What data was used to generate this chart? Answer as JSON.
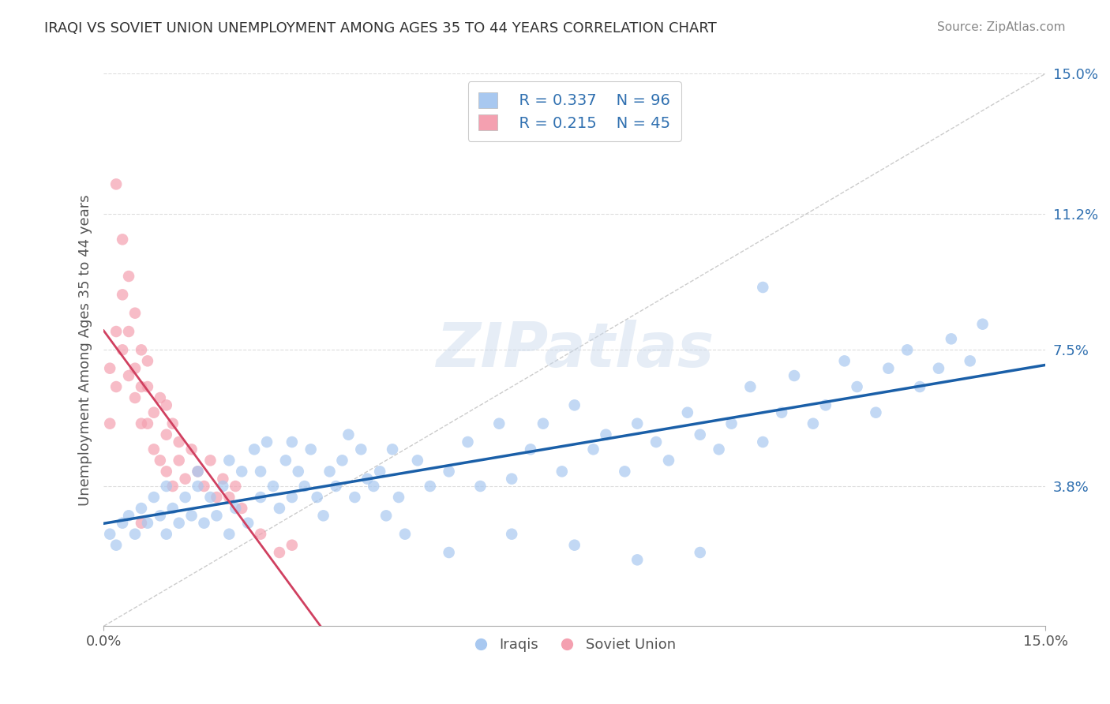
{
  "title": "IRAQI VS SOVIET UNION UNEMPLOYMENT AMONG AGES 35 TO 44 YEARS CORRELATION CHART",
  "source": "Source: ZipAtlas.com",
  "ylabel": "Unemployment Among Ages 35 to 44 years",
  "xlim": [
    0.0,
    0.15
  ],
  "ylim": [
    0.0,
    0.15
  ],
  "ytick_labels": [
    "3.8%",
    "7.5%",
    "11.2%",
    "15.0%"
  ],
  "ytick_values": [
    0.038,
    0.075,
    0.112,
    0.15
  ],
  "legend_R_iraqis": "R = 0.337",
  "legend_N_iraqis": "N = 96",
  "legend_R_soviet": "R = 0.215",
  "legend_N_soviet": "N = 45",
  "iraqis_color": "#a8c8f0",
  "soviet_color": "#f4a0b0",
  "iraqis_line_color": "#1a5fa8",
  "soviet_line_color": "#d04060",
  "iraqis_label": "Iraqis",
  "soviet_label": "Soviet Union",
  "background_color": "#ffffff",
  "watermark": "ZIPatlas",
  "iraqis_x": [
    0.001,
    0.002,
    0.003,
    0.004,
    0.005,
    0.006,
    0.007,
    0.008,
    0.009,
    0.01,
    0.01,
    0.011,
    0.012,
    0.013,
    0.014,
    0.015,
    0.015,
    0.016,
    0.017,
    0.018,
    0.019,
    0.02,
    0.02,
    0.021,
    0.022,
    0.023,
    0.024,
    0.025,
    0.025,
    0.026,
    0.027,
    0.028,
    0.029,
    0.03,
    0.03,
    0.031,
    0.032,
    0.033,
    0.034,
    0.035,
    0.036,
    0.037,
    0.038,
    0.039,
    0.04,
    0.041,
    0.042,
    0.043,
    0.044,
    0.045,
    0.046,
    0.047,
    0.048,
    0.05,
    0.052,
    0.055,
    0.058,
    0.06,
    0.063,
    0.065,
    0.068,
    0.07,
    0.073,
    0.075,
    0.078,
    0.08,
    0.083,
    0.085,
    0.088,
    0.09,
    0.093,
    0.095,
    0.098,
    0.1,
    0.103,
    0.105,
    0.108,
    0.11,
    0.113,
    0.115,
    0.118,
    0.12,
    0.123,
    0.125,
    0.128,
    0.13,
    0.133,
    0.135,
    0.138,
    0.14,
    0.055,
    0.065,
    0.075,
    0.085,
    0.095,
    0.105
  ],
  "iraqis_y": [
    0.025,
    0.022,
    0.028,
    0.03,
    0.025,
    0.032,
    0.028,
    0.035,
    0.03,
    0.038,
    0.025,
    0.032,
    0.028,
    0.035,
    0.03,
    0.038,
    0.042,
    0.028,
    0.035,
    0.03,
    0.038,
    0.045,
    0.025,
    0.032,
    0.042,
    0.028,
    0.048,
    0.035,
    0.042,
    0.05,
    0.038,
    0.032,
    0.045,
    0.035,
    0.05,
    0.042,
    0.038,
    0.048,
    0.035,
    0.03,
    0.042,
    0.038,
    0.045,
    0.052,
    0.035,
    0.048,
    0.04,
    0.038,
    0.042,
    0.03,
    0.048,
    0.035,
    0.025,
    0.045,
    0.038,
    0.042,
    0.05,
    0.038,
    0.055,
    0.04,
    0.048,
    0.055,
    0.042,
    0.06,
    0.048,
    0.052,
    0.042,
    0.055,
    0.05,
    0.045,
    0.058,
    0.052,
    0.048,
    0.055,
    0.065,
    0.05,
    0.058,
    0.068,
    0.055,
    0.06,
    0.072,
    0.065,
    0.058,
    0.07,
    0.075,
    0.065,
    0.07,
    0.078,
    0.072,
    0.082,
    0.02,
    0.025,
    0.022,
    0.018,
    0.02,
    0.092
  ],
  "soviet_x": [
    0.001,
    0.001,
    0.002,
    0.002,
    0.003,
    0.003,
    0.004,
    0.004,
    0.005,
    0.005,
    0.006,
    0.006,
    0.006,
    0.007,
    0.007,
    0.007,
    0.008,
    0.008,
    0.009,
    0.009,
    0.01,
    0.01,
    0.01,
    0.011,
    0.011,
    0.012,
    0.012,
    0.013,
    0.014,
    0.015,
    0.016,
    0.017,
    0.018,
    0.019,
    0.02,
    0.021,
    0.022,
    0.025,
    0.028,
    0.03,
    0.002,
    0.003,
    0.004,
    0.005,
    0.006
  ],
  "soviet_y": [
    0.055,
    0.07,
    0.065,
    0.08,
    0.075,
    0.09,
    0.068,
    0.08,
    0.062,
    0.07,
    0.055,
    0.065,
    0.075,
    0.055,
    0.065,
    0.072,
    0.048,
    0.058,
    0.045,
    0.062,
    0.042,
    0.052,
    0.06,
    0.038,
    0.055,
    0.045,
    0.05,
    0.04,
    0.048,
    0.042,
    0.038,
    0.045,
    0.035,
    0.04,
    0.035,
    0.038,
    0.032,
    0.025,
    0.02,
    0.022,
    0.12,
    0.105,
    0.095,
    0.085,
    0.028
  ]
}
